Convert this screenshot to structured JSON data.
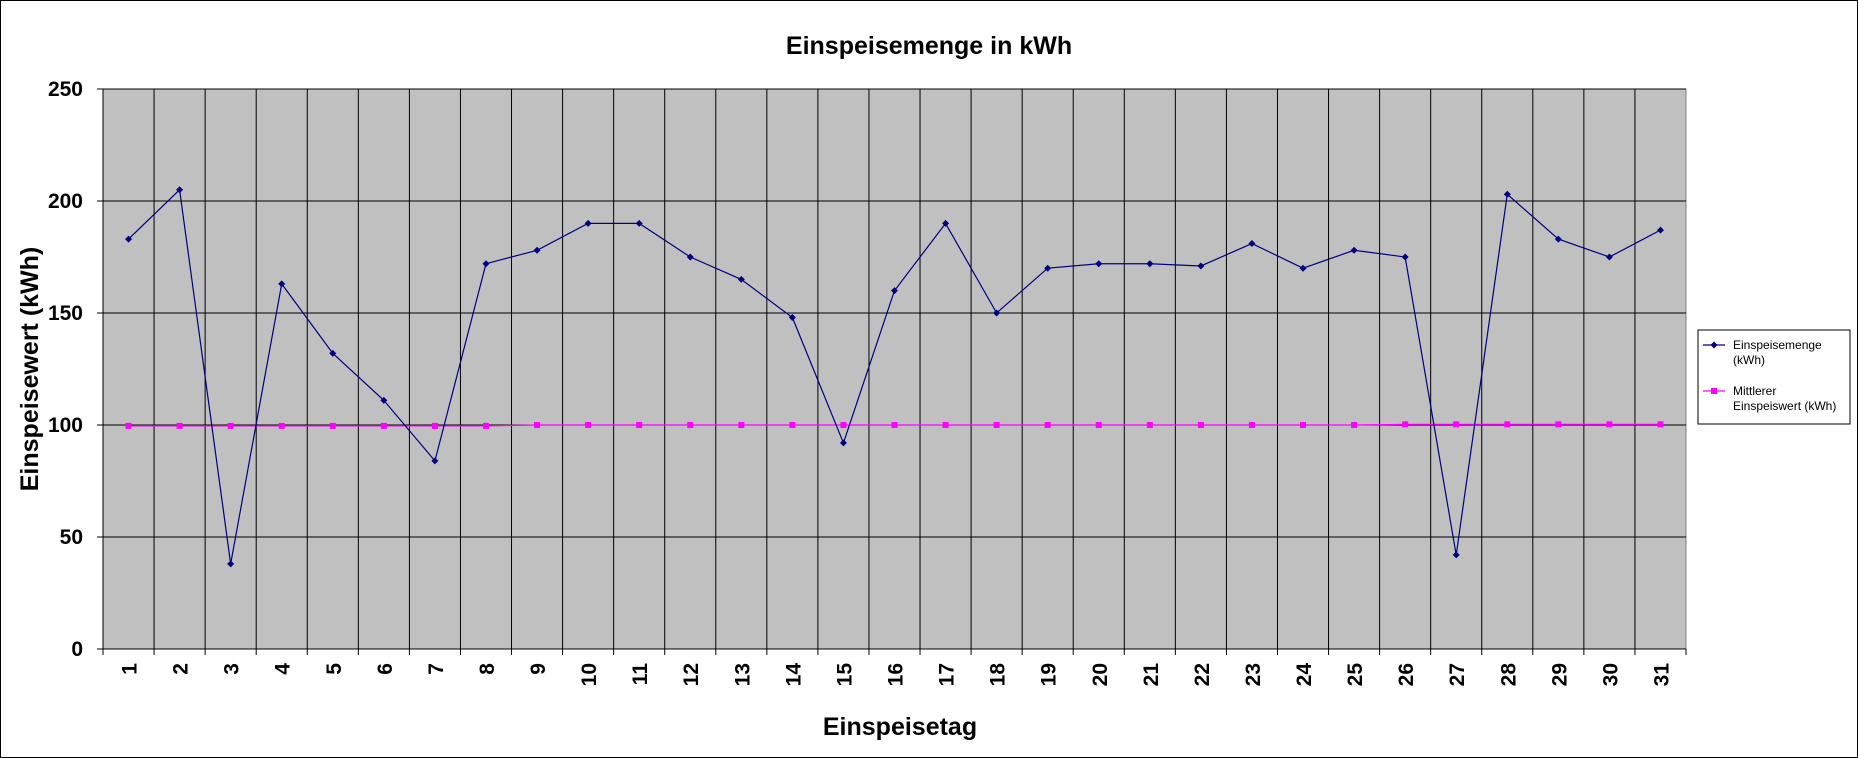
{
  "chart_data": {
    "type": "line",
    "title": "Einspeisemenge in kWh",
    "xlabel": "Einspeisetag",
    "ylabel": "Einspeisewert  (kWh)",
    "categories": [
      "1",
      "2",
      "3",
      "4",
      "5",
      "6",
      "7",
      "8",
      "9",
      "10",
      "11",
      "12",
      "13",
      "14",
      "15",
      "16",
      "17",
      "18",
      "19",
      "20",
      "21",
      "22",
      "23",
      "24",
      "25",
      "26",
      "27",
      "28",
      "29",
      "30",
      "31"
    ],
    "ylim": [
      0,
      250
    ],
    "yticks": [
      0,
      50,
      100,
      150,
      200,
      250
    ],
    "grid": true,
    "plot_background": "#C0C0C0",
    "legend_position": "right",
    "series": [
      {
        "name": "Einspeisemenge (kWh)",
        "legend_lines": [
          "Einspeisemenge",
          "(kWh)"
        ],
        "color": "#000080",
        "marker": "diamond",
        "values": [
          183,
          205,
          38,
          163,
          132,
          111,
          84,
          172,
          178,
          190,
          190,
          175,
          165,
          148,
          92,
          160,
          190,
          150,
          170,
          172,
          172,
          171,
          181,
          170,
          178,
          175,
          42,
          203,
          183,
          175,
          187
        ]
      },
      {
        "name": "Mittlerer Einspeiswert (kWh)",
        "legend_lines": [
          "Mittlerer",
          "Einspeiswert (kWh)"
        ],
        "color": "#FF00FF",
        "marker": "square",
        "values": [
          99.6,
          99.6,
          99.6,
          99.6,
          99.6,
          99.6,
          99.6,
          99.6,
          100,
          100,
          100,
          100,
          100,
          100,
          100,
          100,
          100,
          100,
          100,
          100,
          100,
          100,
          100,
          100,
          100,
          100.3,
          100.3,
          100.3,
          100.3,
          100.3,
          100.3
        ]
      }
    ]
  }
}
